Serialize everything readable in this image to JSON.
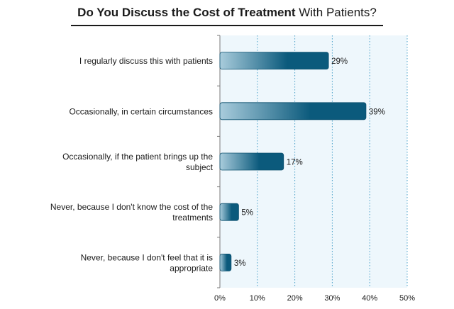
{
  "chart_data": {
    "type": "bar",
    "orientation": "horizontal",
    "title_bold": "Do You Discuss the Cost of Treatment",
    "title_rest": "With Patients?",
    "categories": [
      "I regularly discuss this with patients",
      "Occasionally, in certain circumstances",
      "Occasionally, if the patient brings up the subject",
      "Never, because I don't know the cost of the treatments",
      "Never, because I don't feel that it is appropriate"
    ],
    "category_lines": [
      [
        "I regularly discuss this with patients"
      ],
      [
        "Occasionally, in certain circumstances"
      ],
      [
        "Occasionally, if the patient brings up the",
        "subject"
      ],
      [
        "Never, because I don't know the cost of the",
        "treatments"
      ],
      [
        "Never, because I don't feel that it is",
        "appropriate"
      ]
    ],
    "values": [
      29,
      39,
      17,
      5,
      3
    ],
    "value_labels": [
      "29%",
      "39%",
      "17%",
      "5%",
      "3%"
    ],
    "xlim": [
      0,
      50
    ],
    "xticks": [
      0,
      10,
      20,
      30,
      40,
      50
    ],
    "xtick_labels": [
      "0%",
      "10%",
      "20%",
      "30%",
      "40%",
      "50%"
    ],
    "xlabel": "",
    "ylabel": "",
    "grid": "vertical-dotted",
    "legend": "none",
    "colors": {
      "bar_dark": "#0b5a7c",
      "bar_light": "#a9ccdc",
      "plot_bg": "#eef7fc",
      "grid": "#4aa0c8"
    }
  }
}
